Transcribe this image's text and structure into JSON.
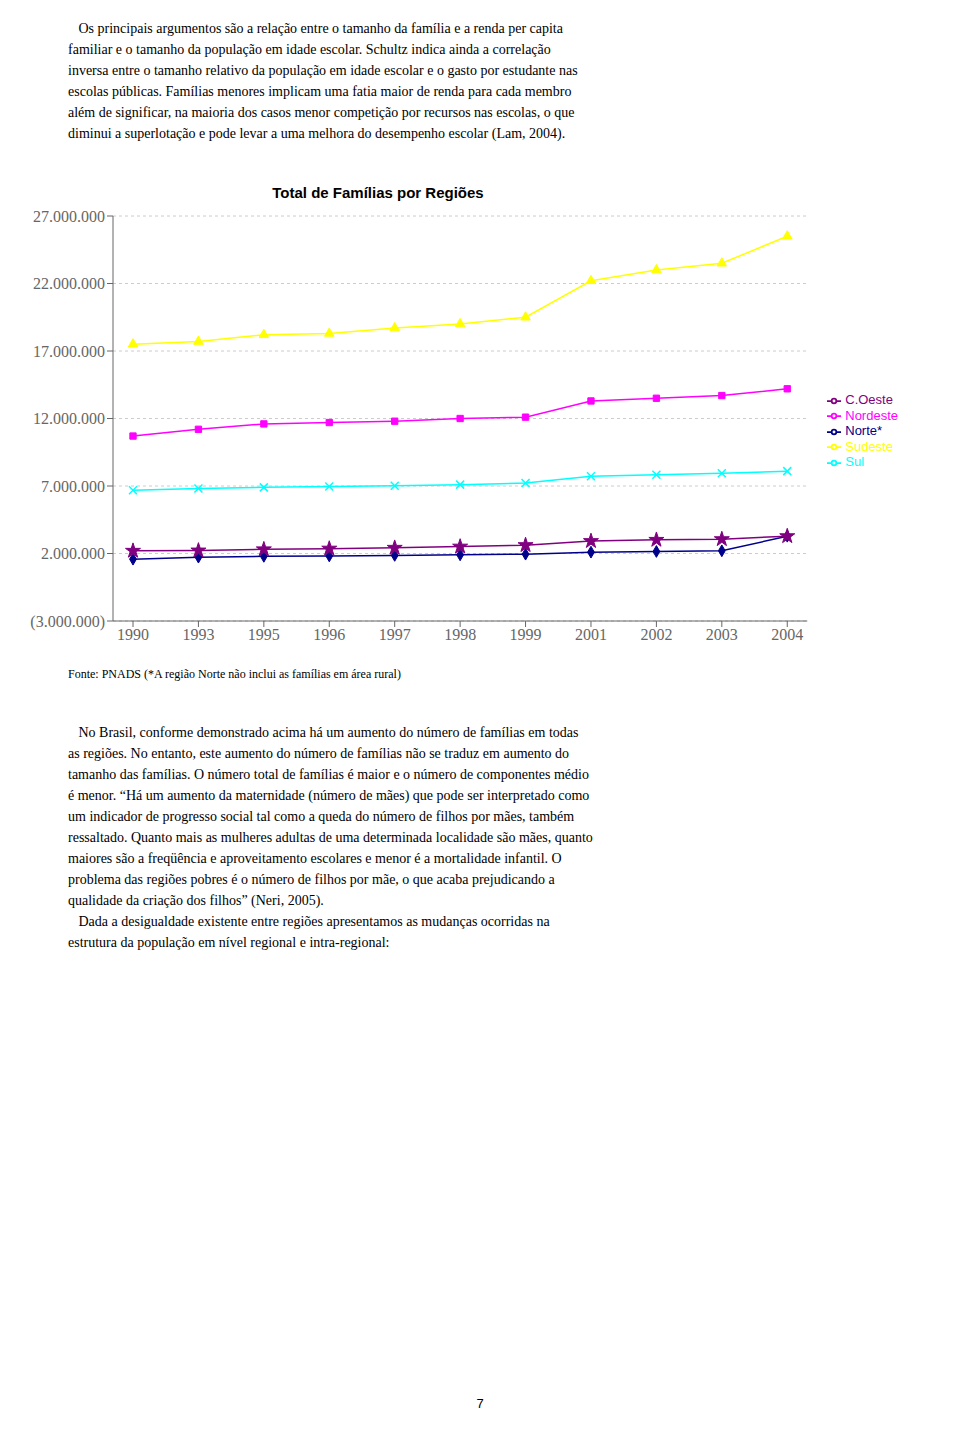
{
  "chart_data": {
    "type": "line",
    "title": "Total de Famílias por Regiões",
    "categories": [
      "1990",
      "1993",
      "1995",
      "1996",
      "1997",
      "1998",
      "1999",
      "2001",
      "2002",
      "2003",
      "2004"
    ],
    "series": [
      {
        "name": "Norte*",
        "color": "#00008B",
        "marker": "diamond",
        "values": [
          1580000,
          1730000,
          1790000,
          1820000,
          1860000,
          1900000,
          1950000,
          2100000,
          2150000,
          2200000,
          3280000
        ]
      },
      {
        "name": "Nordeste",
        "color": "#FF00FF",
        "marker": "square",
        "values": [
          10700000,
          11200000,
          11600000,
          11700000,
          11800000,
          12000000,
          12100000,
          13300000,
          13500000,
          13700000,
          14200000
        ]
      },
      {
        "name": "Sudeste",
        "color": "#FFFF00",
        "marker": "triangle",
        "values": [
          17500000,
          17700000,
          18200000,
          18300000,
          18700000,
          19000000,
          19500000,
          22200000,
          23000000,
          23500000,
          25500000
        ]
      },
      {
        "name": "Sul",
        "color": "#00FFFF",
        "marker": "x",
        "values": [
          6680000,
          6810000,
          6900000,
          6960000,
          7020000,
          7100000,
          7220000,
          7720000,
          7830000,
          7940000,
          8100000
        ]
      },
      {
        "name": "C.Oeste",
        "color": "#800080",
        "marker": "star",
        "values": [
          2200000,
          2220000,
          2310000,
          2360000,
          2420000,
          2510000,
          2620000,
          2920000,
          3010000,
          3060000,
          3280000
        ]
      }
    ],
    "ylim": [
      -3000000,
      27000000
    ],
    "yticks": [
      {
        "value": -3000000,
        "label": "(3.000.000)"
      },
      {
        "value": 2000000,
        "label": "2.000.000"
      },
      {
        "value": 7000000,
        "label": "7.000.000"
      },
      {
        "value": 12000000,
        "label": "12.000.000"
      },
      {
        "value": 17000000,
        "label": "17.000.000"
      },
      {
        "value": 22000000,
        "label": "22.000.000"
      },
      {
        "value": 27000000,
        "label": "27.000.000"
      }
    ],
    "grid": true,
    "legend": "right",
    "annotations": [
      "   Os principais argumentos são a relação entre o tamanho da família e a renda per capita\nfamiliar e o tamanho da população em idade escolar. Schultz indica ainda a correlação\ninversa entre o tamanho relativo da população em idade escolar e o gasto por estudante nas\nescolas públicas. Famílias menores implicam uma fatia maior de renda para cada membro\nalém de significar, na maioria dos casos menor competição por recursos nas escolas, o que\ndiminui a superlotação e pode levar a uma melhora do desempenho escolar (Lam, 2004).",
      "Fonte: PNADS (*A região Norte não inclui as famílias em área rural)",
      "   No Brasil, conforme demonstrado acima há um aumento do número de famílias em todas\nas regiões. No entanto, este aumento do número de famílias não se traduz em aumento do\ntamanho das famílias. O número total de famílias é maior e o número de componentes médio\né menor. “Há um aumento da maternidade (número de mães) que pode ser interpretado como\num indicador de progresso social tal como a queda do número de filhos por mães, também\nressaltado. Quanto mais as mulheres adultas de uma determinada localidade são mães, quanto\nmaiores são a freqüência e aproveitamento escolares e menor é a mortalidade infantil. O\nproblema das regiões pobres é o número de filhos por mãe, o que acaba prejudicando a\nqualidade da criação dos filhos” (Neri, 2005).\n   Dada a desigualdade existente entre regiões apresentamos as mudanças ocorridas na\nestrutura da população em nível regional e intra-regional:",
      "7"
    ]
  }
}
